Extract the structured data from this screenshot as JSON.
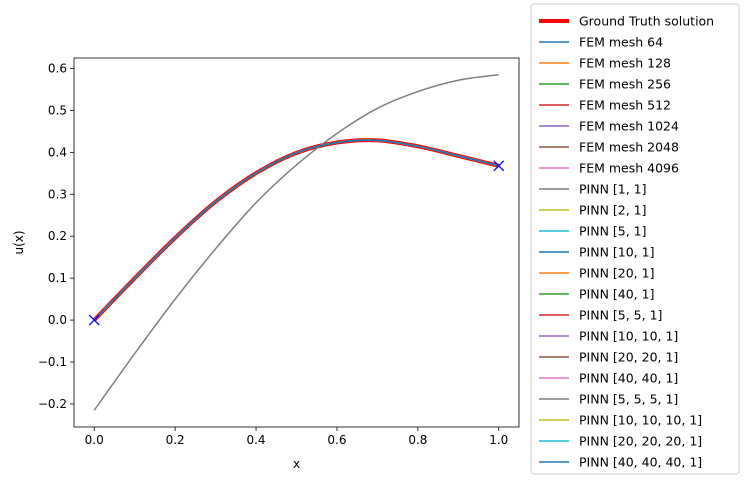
{
  "chart_data": {
    "type": "line",
    "xlabel": "x",
    "ylabel": "u(x)",
    "xlim": [
      -0.05,
      1.05
    ],
    "ylim": [
      -0.255,
      0.625
    ],
    "x_ticks": [
      0.0,
      0.2,
      0.4,
      0.6,
      0.8,
      1.0
    ],
    "x_tick_labels": [
      "0.0",
      "0.2",
      "0.4",
      "0.6",
      "0.8",
      "1.0"
    ],
    "y_ticks": [
      -0.2,
      -0.1,
      0.0,
      0.1,
      0.2,
      0.3,
      0.4,
      0.5,
      0.6
    ],
    "y_tick_labels": [
      "−0.2",
      "−0.1",
      "0.0",
      "0.1",
      "0.2",
      "0.3",
      "0.4",
      "0.5",
      "0.6"
    ],
    "grid": false,
    "legend_position": "outside-right",
    "x": [
      0.0,
      0.1,
      0.2,
      0.3,
      0.4,
      0.5,
      0.6,
      0.7,
      0.8,
      0.9,
      1.0
    ],
    "series": [
      {
        "name": "Ground Truth solution",
        "color": "#ff0000",
        "style": "thick",
        "values": [
          0.0,
          0.0998,
          0.196,
          0.2822,
          0.3505,
          0.3988,
          0.4235,
          0.4286,
          0.4144,
          0.3916,
          0.3679
        ]
      },
      {
        "name": "FEM mesh 64",
        "color": "#1f77b4",
        "values": [
          0.0,
          0.0998,
          0.196,
          0.2822,
          0.3505,
          0.3988,
          0.4235,
          0.4286,
          0.4144,
          0.3916,
          0.3679
        ]
      },
      {
        "name": "FEM mesh 128",
        "color": "#ff7f0e",
        "values": [
          0.0,
          0.0998,
          0.196,
          0.2822,
          0.3505,
          0.3988,
          0.4235,
          0.4286,
          0.4144,
          0.3916,
          0.3679
        ]
      },
      {
        "name": "FEM mesh 256",
        "color": "#2ca02c",
        "values": [
          0.0,
          0.0998,
          0.196,
          0.2822,
          0.3505,
          0.3988,
          0.4235,
          0.4286,
          0.4144,
          0.3916,
          0.3679
        ]
      },
      {
        "name": "FEM mesh 512",
        "color": "#d62728",
        "values": [
          0.0,
          0.0998,
          0.196,
          0.2822,
          0.3505,
          0.3988,
          0.4235,
          0.4286,
          0.4144,
          0.3916,
          0.3679
        ]
      },
      {
        "name": "FEM mesh 1024",
        "color": "#9467bd",
        "values": [
          0.0,
          0.0998,
          0.196,
          0.2822,
          0.3505,
          0.3988,
          0.4235,
          0.4286,
          0.4144,
          0.3916,
          0.3679
        ]
      },
      {
        "name": "FEM mesh 2048",
        "color": "#8c564b",
        "values": [
          0.0,
          0.0998,
          0.196,
          0.2822,
          0.3505,
          0.3988,
          0.4235,
          0.4286,
          0.4144,
          0.3916,
          0.3679
        ]
      },
      {
        "name": "FEM mesh 4096",
        "color": "#e377c2",
        "values": [
          0.0,
          0.0998,
          0.196,
          0.2822,
          0.3505,
          0.3988,
          0.4235,
          0.4286,
          0.4144,
          0.3916,
          0.3679
        ]
      },
      {
        "name": "PINN [1, 1]",
        "color": "#7f7f7f",
        "values": [
          -0.215,
          -0.08,
          0.05,
          0.17,
          0.28,
          0.37,
          0.445,
          0.505,
          0.545,
          0.572,
          0.585
        ]
      },
      {
        "name": "PINN [2, 1]",
        "color": "#bcbd22",
        "values": [
          0.0,
          0.0998,
          0.196,
          0.2822,
          0.3505,
          0.3988,
          0.4235,
          0.4286,
          0.4144,
          0.3916,
          0.3679
        ]
      },
      {
        "name": "PINN [5, 1]",
        "color": "#17becf",
        "values": [
          0.0,
          0.0998,
          0.196,
          0.2822,
          0.3505,
          0.3988,
          0.4235,
          0.4286,
          0.4144,
          0.3916,
          0.3679
        ]
      },
      {
        "name": "PINN [10, 1]",
        "color": "#1f77b4",
        "values": [
          0.0,
          0.0998,
          0.196,
          0.2822,
          0.3505,
          0.3988,
          0.4235,
          0.4286,
          0.4144,
          0.3916,
          0.3679
        ]
      },
      {
        "name": "PINN [20, 1]",
        "color": "#ff7f0e",
        "values": [
          0.0,
          0.0998,
          0.196,
          0.2822,
          0.3505,
          0.3988,
          0.4235,
          0.4286,
          0.4144,
          0.3916,
          0.3679
        ]
      },
      {
        "name": "PINN [40, 1]",
        "color": "#2ca02c",
        "values": [
          0.0,
          0.0998,
          0.196,
          0.2822,
          0.3505,
          0.3988,
          0.4235,
          0.4286,
          0.4144,
          0.3916,
          0.3679
        ]
      },
      {
        "name": "PINN [5, 5, 1]",
        "color": "#d62728",
        "values": [
          0.0,
          0.0998,
          0.196,
          0.2822,
          0.3505,
          0.3988,
          0.4235,
          0.4286,
          0.4144,
          0.3916,
          0.3679
        ]
      },
      {
        "name": "PINN [10, 10, 1]",
        "color": "#9467bd",
        "values": [
          0.0,
          0.0998,
          0.196,
          0.2822,
          0.3505,
          0.3988,
          0.4235,
          0.4286,
          0.4144,
          0.3916,
          0.3679
        ]
      },
      {
        "name": "PINN [20, 20, 1]",
        "color": "#8c564b",
        "values": [
          0.0,
          0.0998,
          0.196,
          0.2822,
          0.3505,
          0.3988,
          0.4235,
          0.4286,
          0.4144,
          0.3916,
          0.3679
        ]
      },
      {
        "name": "PINN [40, 40, 1]",
        "color": "#e377c2",
        "values": [
          0.0,
          0.0998,
          0.196,
          0.2822,
          0.3505,
          0.3988,
          0.4235,
          0.4286,
          0.4144,
          0.3916,
          0.3679
        ]
      },
      {
        "name": "PINN [5, 5, 5, 1]",
        "color": "#7f7f7f",
        "values": [
          0.0,
          0.0998,
          0.196,
          0.2822,
          0.3505,
          0.3988,
          0.4235,
          0.4286,
          0.4144,
          0.3916,
          0.3679
        ]
      },
      {
        "name": "PINN [10, 10, 10, 1]",
        "color": "#bcbd22",
        "values": [
          0.0,
          0.0998,
          0.196,
          0.2822,
          0.3505,
          0.3988,
          0.4235,
          0.4286,
          0.4144,
          0.3916,
          0.3679
        ]
      },
      {
        "name": "PINN [20, 20, 20, 1]",
        "color": "#17becf",
        "values": [
          0.0,
          0.0998,
          0.196,
          0.2822,
          0.3505,
          0.3988,
          0.4235,
          0.4286,
          0.4144,
          0.3916,
          0.3679
        ]
      },
      {
        "name": "PINN [40, 40, 40, 1]",
        "color": "#1f77b4",
        "values": [
          0.0,
          0.0998,
          0.196,
          0.2822,
          0.3505,
          0.3988,
          0.4235,
          0.4286,
          0.4144,
          0.3916,
          0.3679
        ]
      }
    ],
    "boundary_markers": {
      "marker": "x",
      "color": "#0000ff",
      "points": [
        [
          0.0,
          0.0
        ],
        [
          1.0,
          0.3679
        ]
      ]
    }
  }
}
